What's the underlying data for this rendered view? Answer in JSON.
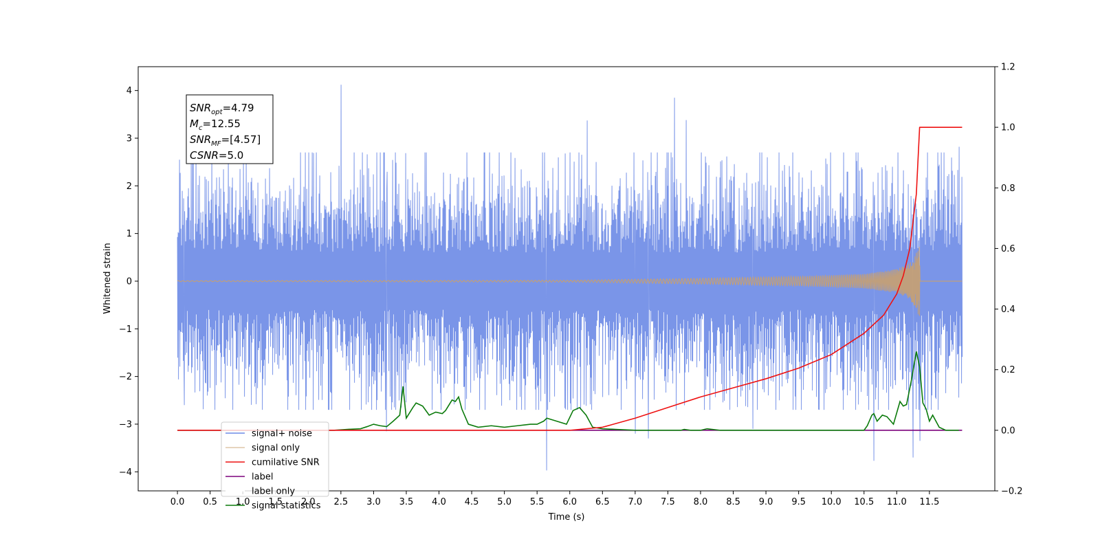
{
  "chart_data": {
    "type": "line",
    "title": "",
    "xlabel": "Time (s)",
    "ylabel": "Whitened strain",
    "xlim": [
      -0.6,
      12.5
    ],
    "ylim": [
      -4.4,
      4.5
    ],
    "y2lim": [
      -0.2,
      1.2
    ],
    "x_ticks": [
      0.0,
      0.5,
      1.0,
      1.5,
      2.0,
      2.5,
      3.0,
      3.5,
      4.0,
      4.5,
      5.0,
      5.5,
      6.0,
      6.5,
      7.0,
      7.5,
      8.0,
      8.5,
      9.0,
      9.5,
      10.0,
      10.5,
      11.0,
      11.5
    ],
    "x_tick_labels": [
      "0.0",
      "0.5",
      "1.0",
      "1.5",
      "2.0",
      "2.5",
      "3.0",
      "3.5",
      "4.0",
      "4.5",
      "5.0",
      "5.5",
      "6.0",
      "6.5",
      "7.0",
      "7.5",
      "8.0",
      "8.5",
      "9.0",
      "9.5",
      "10.0",
      "10.5",
      "11.0",
      "11.5"
    ],
    "y_ticks": [
      -4,
      -3,
      -2,
      -1,
      0,
      1,
      2,
      3,
      4
    ],
    "y_tick_labels": [
      "−4",
      "−3",
      "−2",
      "−1",
      "0",
      "1",
      "2",
      "3",
      "4"
    ],
    "y2_ticks": [
      -0.2,
      0.0,
      0.2,
      0.4,
      0.6,
      0.8,
      1.0,
      1.2
    ],
    "y2_tick_labels": [
      "−0.2",
      "0.0",
      "0.2",
      "0.4",
      "0.6",
      "0.8",
      "1.0",
      "1.2"
    ],
    "grid": false,
    "legend_position": "lower-left",
    "series": [
      {
        "name": "signal+ noise",
        "axis": "left",
        "color": "#6b8ae6",
        "style": "dense noise spanning about -2.5 to 2.5 whitened strain from t=0 to t=12 s",
        "x_range": [
          0.0,
          12.0
        ],
        "spikes": [
          {
            "x": 2.5,
            "y": 4.12
          },
          {
            "x": 7.6,
            "y": 3.85
          },
          {
            "x": 6.27,
            "y": 3.37
          },
          {
            "x": 7.78,
            "y": 3.38
          },
          {
            "x": 11.95,
            "y": 2.82
          },
          {
            "x": 0.03,
            "y": 2.55
          },
          {
            "x": 5.65,
            "y": -3.97
          },
          {
            "x": 10.65,
            "y": -3.77
          },
          {
            "x": 11.25,
            "y": -3.7
          },
          {
            "x": 11.35,
            "y": -3.35
          },
          {
            "x": 7.2,
            "y": -3.3
          },
          {
            "x": 7.0,
            "y": -3.2
          },
          {
            "x": 3.2,
            "y": -3.15
          },
          {
            "x": 8.8,
            "y": -3.1
          },
          {
            "x": 0.1,
            "y": -2.6
          }
        ]
      },
      {
        "name": "signal only",
        "axis": "left",
        "color": "#c8a070",
        "style": "chirp with amplitude growing toward merger",
        "x_range": [
          0.0,
          12.0
        ],
        "merger_time": 11.35,
        "envelope": {
          "x": [
            0.0,
            6.0,
            8.0,
            9.5,
            10.5,
            11.0,
            11.2,
            11.3,
            11.35,
            11.36
          ],
          "amplitude": [
            0.01,
            0.02,
            0.06,
            0.1,
            0.15,
            0.25,
            0.38,
            0.6,
            0.78,
            0.0
          ]
        }
      },
      {
        "name": "cumilative SNR",
        "axis": "right",
        "color": "#ee1111",
        "x": [
          0.0,
          6.0,
          6.5,
          7.0,
          7.5,
          8.0,
          8.5,
          9.0,
          9.5,
          10.0,
          10.5,
          10.8,
          11.0,
          11.1,
          11.2,
          11.3,
          11.35,
          11.4,
          12.0
        ],
        "values": [
          0.0,
          0.0,
          0.01,
          0.04,
          0.075,
          0.11,
          0.14,
          0.17,
          0.205,
          0.25,
          0.32,
          0.38,
          0.45,
          0.51,
          0.6,
          0.78,
          1.0,
          1.0,
          1.0
        ]
      },
      {
        "name": "label",
        "axis": "right",
        "color": "#7b007b",
        "x": [
          0.0,
          12.0
        ],
        "values": [
          0.0,
          0.0
        ]
      },
      {
        "name": "label only",
        "axis": "right",
        "color": "#ffffff",
        "x": [],
        "values": []
      },
      {
        "name": "signal statistics",
        "axis": "right",
        "color": "#0a7a0a",
        "x": [
          0.0,
          2.4,
          2.6,
          2.8,
          2.9,
          3.0,
          3.1,
          3.2,
          3.3,
          3.4,
          3.45,
          3.5,
          3.6,
          3.65,
          3.75,
          3.85,
          3.95,
          4.05,
          4.1,
          4.2,
          4.25,
          4.3,
          4.35,
          4.45,
          4.6,
          4.8,
          5.0,
          5.2,
          5.4,
          5.5,
          5.6,
          5.65,
          5.8,
          5.95,
          6.05,
          6.15,
          6.25,
          6.35,
          6.5,
          6.7,
          7.0,
          7.7,
          7.75,
          7.85,
          8.0,
          8.1,
          8.3,
          9.0,
          10.0,
          10.5,
          10.55,
          10.62,
          10.65,
          10.7,
          10.78,
          10.85,
          10.95,
          11.05,
          11.1,
          11.15,
          11.22,
          11.3,
          11.35,
          11.4,
          11.45,
          11.5,
          11.55,
          11.65,
          11.75,
          11.95
        ],
        "values": [
          0.0,
          0.0,
          0.003,
          0.005,
          0.012,
          0.02,
          0.015,
          0.012,
          0.03,
          0.05,
          0.145,
          0.04,
          0.075,
          0.09,
          0.08,
          0.05,
          0.06,
          0.055,
          0.065,
          0.1,
          0.095,
          0.11,
          0.07,
          0.02,
          0.01,
          0.015,
          0.01,
          0.015,
          0.02,
          0.02,
          0.03,
          0.04,
          0.03,
          0.02,
          0.065,
          0.075,
          0.05,
          0.01,
          0.005,
          0.003,
          0.0,
          0.0,
          0.003,
          0.0,
          0.0,
          0.005,
          0.0,
          0.0,
          0.0,
          0.0,
          0.015,
          0.05,
          0.055,
          0.03,
          0.05,
          0.045,
          0.02,
          0.095,
          0.08,
          0.085,
          0.16,
          0.26,
          0.21,
          0.09,
          0.07,
          0.03,
          0.05,
          0.01,
          0.0,
          0.0
        ]
      }
    ],
    "annotations": [
      {
        "base": "SNR",
        "sub": "opt",
        "value": "=4.79"
      },
      {
        "base": "M",
        "sub": "c",
        "value": "=12.55"
      },
      {
        "base": "SNR",
        "sub": "MF",
        "value": "=[4.57]"
      },
      {
        "base": "CSNR",
        "sub": "",
        "value": "=5.0"
      }
    ]
  }
}
